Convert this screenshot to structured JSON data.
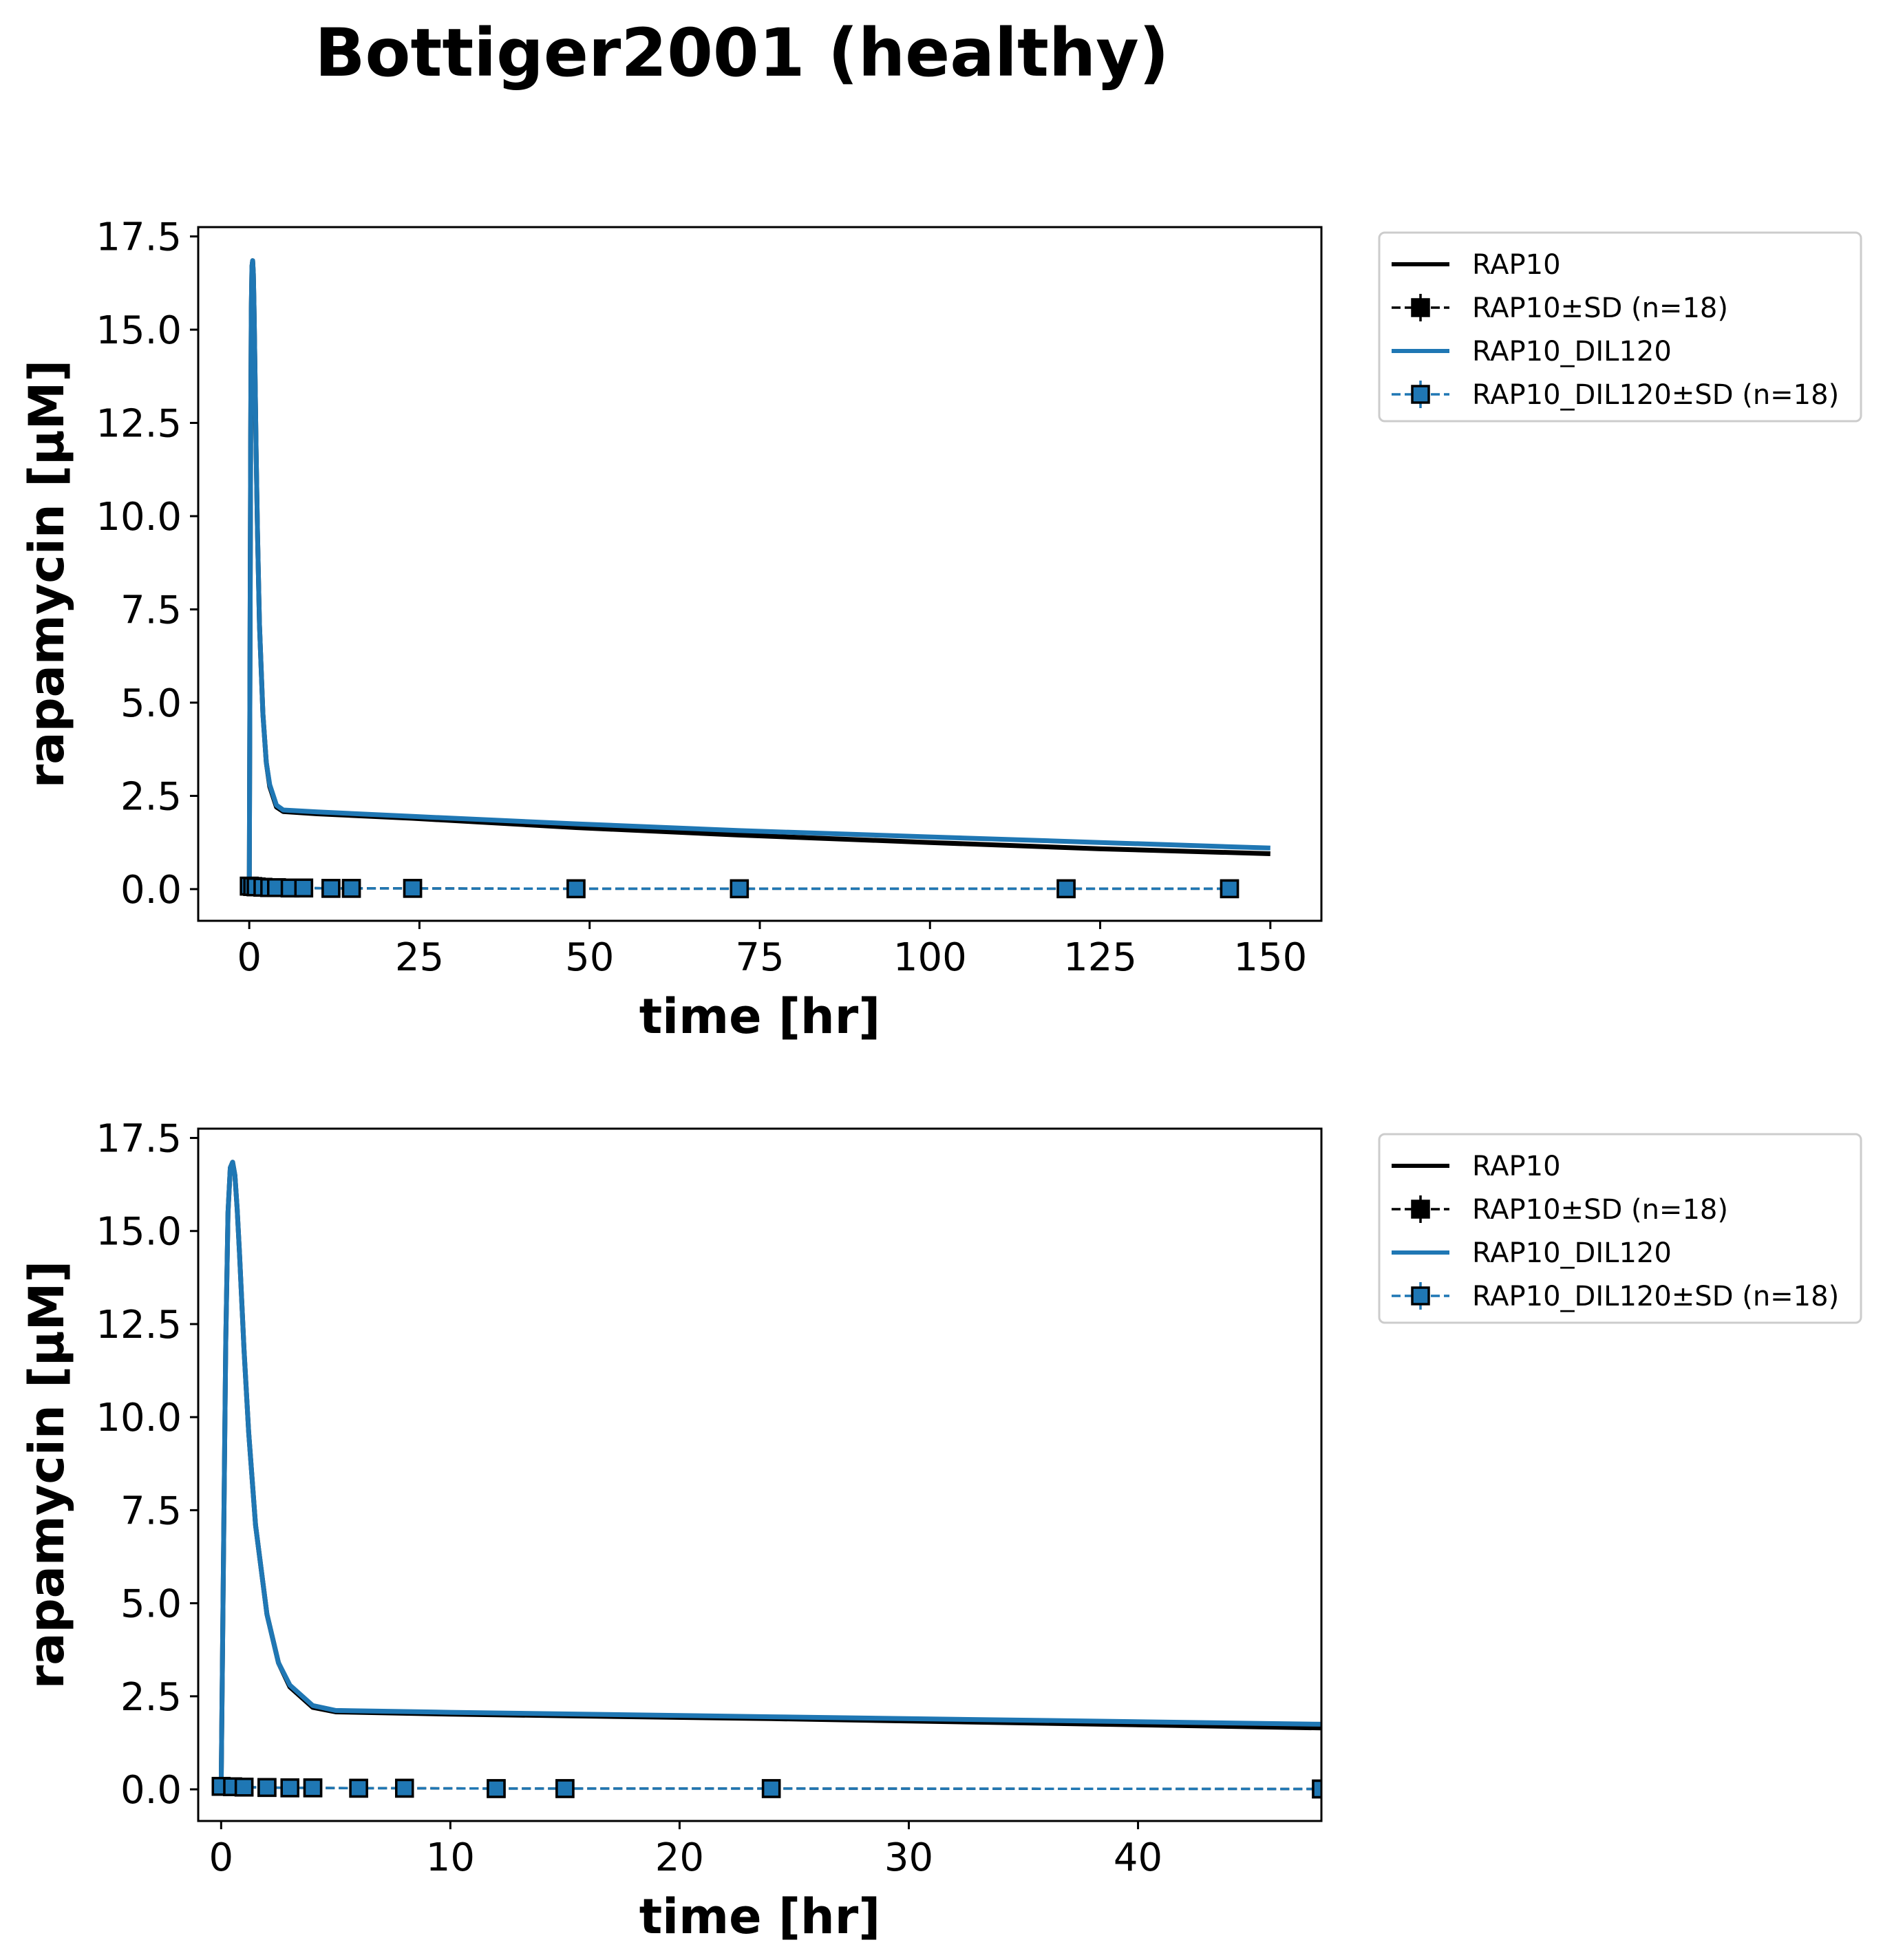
{
  "figure": {
    "title": "Bottiger2001 (healthy)"
  },
  "chart_data": [
    {
      "type": "line",
      "xlabel": "time [hr]",
      "ylabel": "rapamycin [µM]",
      "xlim": [
        -7.5,
        157.5
      ],
      "ylim": [
        -0.85,
        17.75
      ],
      "xticks": [
        0,
        25,
        50,
        75,
        100,
        125,
        150
      ],
      "xtick_labels": [
        "0",
        "25",
        "50",
        "75",
        "100",
        "125",
        "150"
      ],
      "yticks": [
        0.0,
        2.5,
        5.0,
        7.5,
        10.0,
        12.5,
        15.0,
        17.5
      ],
      "ytick_labels": [
        "0.0",
        "2.5",
        "5.0",
        "7.5",
        "10.0",
        "12.5",
        "15.0",
        "17.5"
      ],
      "grid": false,
      "legend_position": "outside-right-top",
      "series": [
        {
          "name": "RAP10",
          "kind": "line",
          "color": "#000000",
          "x": [
            0,
            0.1,
            0.2,
            0.3,
            0.4,
            0.5,
            0.6,
            0.7,
            0.8,
            1.0,
            1.2,
            1.5,
            2.0,
            2.5,
            3.0,
            4.0,
            5.0,
            10,
            24,
            48,
            72,
            100,
            125,
            150
          ],
          "y": [
            0,
            6.0,
            12.0,
            15.5,
            16.7,
            16.85,
            16.5,
            15.6,
            14.4,
            11.8,
            9.6,
            7.1,
            4.7,
            3.4,
            2.75,
            2.2,
            2.08,
            2.02,
            1.9,
            1.65,
            1.45,
            1.25,
            1.08,
            0.95
          ]
        },
        {
          "name": "RAP10±SD (n=18)",
          "kind": "markers",
          "color": "#000000",
          "x": [
            0,
            0.5,
            1,
            2,
            3,
            4,
            6,
            8,
            12,
            15,
            24,
            48,
            72,
            120,
            144
          ],
          "y": [
            0.08,
            0.07,
            0.06,
            0.05,
            0.04,
            0.04,
            0.03,
            0.03,
            0.02,
            0.02,
            0.02,
            0.01,
            0.01,
            0.01,
            0.01
          ]
        },
        {
          "name": "RAP10_DIL120",
          "kind": "line",
          "color": "#1f77b4",
          "x": [
            0,
            0.1,
            0.2,
            0.3,
            0.4,
            0.5,
            0.6,
            0.7,
            0.8,
            1.0,
            1.2,
            1.5,
            2.0,
            2.5,
            3.0,
            4.0,
            5.0,
            10,
            24,
            48,
            72,
            100,
            125,
            150
          ],
          "y": [
            0,
            6.0,
            12.0,
            15.5,
            16.7,
            16.85,
            16.5,
            15.6,
            14.4,
            11.8,
            9.6,
            7.1,
            4.7,
            3.4,
            2.8,
            2.25,
            2.12,
            2.07,
            1.95,
            1.75,
            1.57,
            1.4,
            1.25,
            1.1
          ]
        },
        {
          "name": "RAP10_DIL120±SD (n=18)",
          "kind": "markers",
          "color": "#1f77b4",
          "x": [
            0,
            0.5,
            1,
            2,
            3,
            4,
            6,
            8,
            12,
            15,
            24,
            48,
            72,
            120,
            144
          ],
          "y": [
            0.08,
            0.07,
            0.06,
            0.05,
            0.04,
            0.04,
            0.03,
            0.03,
            0.02,
            0.02,
            0.02,
            0.01,
            0.01,
            0.01,
            0.01
          ]
        }
      ]
    },
    {
      "type": "line",
      "xlabel": "time [hr]",
      "ylabel": "rapamycin [µM]",
      "xlim": [
        -1,
        48
      ],
      "ylim": [
        -0.85,
        17.75
      ],
      "xticks": [
        0,
        10,
        20,
        30,
        40
      ],
      "xtick_labels": [
        "0",
        "10",
        "20",
        "30",
        "40"
      ],
      "yticks": [
        0.0,
        2.5,
        5.0,
        7.5,
        10.0,
        12.5,
        15.0,
        17.5
      ],
      "ytick_labels": [
        "0.0",
        "2.5",
        "5.0",
        "7.5",
        "10.0",
        "12.5",
        "15.0",
        "17.5"
      ],
      "grid": false,
      "legend_position": "outside-right-top",
      "series": [
        {
          "name": "RAP10",
          "kind": "line",
          "color": "#000000",
          "x": [
            0,
            0.1,
            0.2,
            0.3,
            0.4,
            0.5,
            0.6,
            0.7,
            0.8,
            1.0,
            1.2,
            1.5,
            2.0,
            2.5,
            3.0,
            4.0,
            5.0,
            10,
            24,
            48
          ],
          "y": [
            0,
            6.0,
            12.0,
            15.5,
            16.7,
            16.85,
            16.5,
            15.6,
            14.4,
            11.8,
            9.6,
            7.1,
            4.7,
            3.4,
            2.75,
            2.2,
            2.08,
            2.02,
            1.9,
            1.65
          ]
        },
        {
          "name": "RAP10±SD (n=18)",
          "kind": "markers",
          "color": "#000000",
          "x": [
            0,
            0.5,
            1,
            2,
            3,
            4,
            6,
            8,
            12,
            15,
            24,
            48
          ],
          "y": [
            0.08,
            0.07,
            0.06,
            0.05,
            0.04,
            0.04,
            0.03,
            0.03,
            0.02,
            0.02,
            0.02,
            0.01
          ]
        },
        {
          "name": "RAP10_DIL120",
          "kind": "line",
          "color": "#1f77b4",
          "x": [
            0,
            0.1,
            0.2,
            0.3,
            0.4,
            0.5,
            0.6,
            0.7,
            0.8,
            1.0,
            1.2,
            1.5,
            2.0,
            2.5,
            3.0,
            4.0,
            5.0,
            10,
            24,
            48
          ],
          "y": [
            0,
            6.0,
            12.0,
            15.5,
            16.7,
            16.85,
            16.5,
            15.6,
            14.4,
            11.8,
            9.6,
            7.1,
            4.7,
            3.4,
            2.8,
            2.25,
            2.12,
            2.07,
            1.95,
            1.75
          ]
        },
        {
          "name": "RAP10_DIL120±SD (n=18)",
          "kind": "markers",
          "color": "#1f77b4",
          "x": [
            0,
            0.5,
            1,
            2,
            3,
            4,
            6,
            8,
            12,
            15,
            24,
            48
          ],
          "y": [
            0.08,
            0.07,
            0.06,
            0.05,
            0.04,
            0.04,
            0.03,
            0.03,
            0.02,
            0.02,
            0.02,
            0.01
          ]
        }
      ]
    }
  ]
}
